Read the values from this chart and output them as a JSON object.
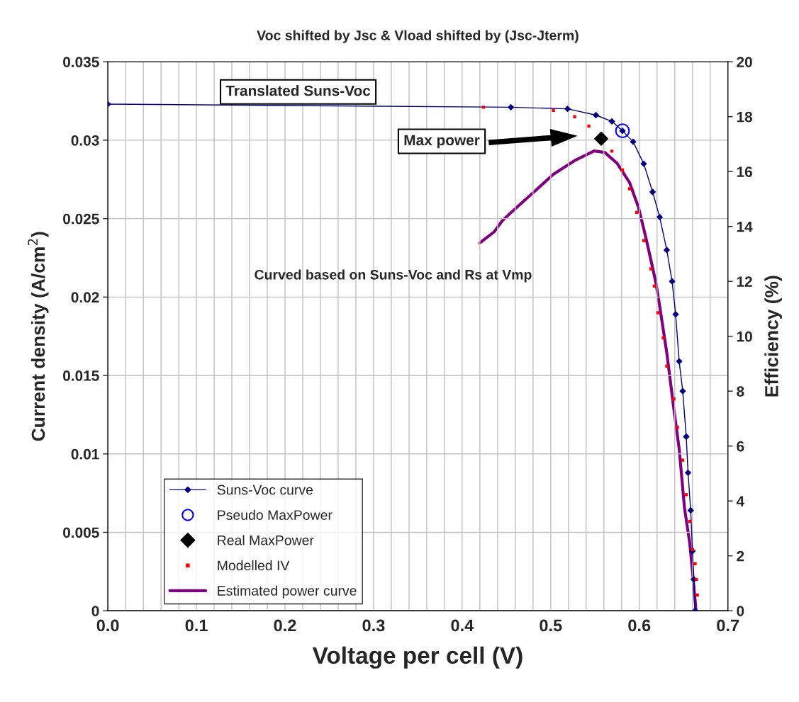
{
  "chart_data": {
    "type": "line",
    "title": "Voc shifted by Jsc & Vload shifted by (Jsc-Jterm)",
    "xlabel": "Voltage per cell (V)",
    "ylabel": "Current density (A/cm$^{2}$)",
    "y2label": "Efficiency (%)",
    "xlim": [
      0,
      0.7
    ],
    "xticks": [
      {
        "value": 0,
        "label": "0.0"
      },
      {
        "value": 0.02,
        "label": null
      },
      {
        "value": 0.04,
        "label": null
      },
      {
        "value": 0.06,
        "label": null
      },
      {
        "value": 0.08,
        "label": null
      },
      0.1,
      {
        "value": 0.12,
        "label": null
      },
      {
        "value": 0.14,
        "label": null
      },
      {
        "value": 0.16,
        "label": null
      },
      {
        "value": 0.18,
        "label": null
      },
      0.2,
      {
        "value": 0.22,
        "label": null
      },
      {
        "value": 0.24,
        "label": null
      },
      {
        "value": 0.26,
        "label": null
      },
      {
        "value": 0.28,
        "label": null
      },
      0.3,
      {
        "value": 0.32,
        "label": null
      },
      {
        "value": 0.34,
        "label": null
      },
      {
        "value": 0.36,
        "label": null
      },
      {
        "value": 0.38,
        "label": null
      },
      0.4,
      {
        "value": 0.42,
        "label": null
      },
      {
        "value": 0.44,
        "label": null
      },
      {
        "value": 0.46,
        "label": null
      },
      {
        "value": 0.48,
        "label": null
      },
      0.5,
      {
        "value": 0.52,
        "label": null
      },
      {
        "value": 0.54,
        "label": null
      },
      {
        "value": 0.56,
        "label": null
      },
      {
        "value": 0.58,
        "label": null
      },
      0.6,
      {
        "value": 0.62,
        "label": null
      },
      {
        "value": 0.64,
        "label": null
      },
      {
        "value": 0.66,
        "label": null
      },
      {
        "value": 0.68,
        "label": null
      },
      0.7
    ],
    "ylim": [
      0,
      0.035
    ],
    "yticks": [
      0,
      0.005,
      0.01,
      0.015,
      0.02,
      0.025,
      0.03,
      0.035
    ],
    "y2lim": [
      0,
      20
    ],
    "y2ticks": [
      0,
      2,
      4,
      6,
      8,
      10,
      12,
      14,
      16,
      18,
      20
    ],
    "grid": true,
    "legend": "bottom left",
    "series": [
      {
        "name": "Suns-Voc curve",
        "marker": "diamond",
        "color": "#000080",
        "x": [
          0,
          0.455,
          0.519,
          0.551,
          0.569,
          0.581,
          0.593,
          0.605,
          0.615,
          0.623,
          0.631,
          0.637,
          0.641,
          0.645,
          0.649,
          0.653,
          0.655,
          0.658,
          0.66,
          0.6615,
          0.663
        ],
        "values": [
          0.0323,
          0.0321,
          0.032,
          0.0316,
          0.0312,
          0.0306,
          0.0299,
          0.0285,
          0.0267,
          0.0251,
          0.023,
          0.021,
          0.0189,
          0.0159,
          0.014,
          0.0111,
          0.0088,
          0.0064,
          0.0038,
          0.002,
          0
        ]
      },
      {
        "name": "Pseudo MaxPower",
        "type": "scatter",
        "marker": "circle",
        "color": "#0000ff",
        "x": [
          0.581
        ],
        "values": [
          0.0306
        ]
      },
      {
        "name": "Real MaxPower",
        "type": "scatter",
        "marker": "diamond",
        "color": "#000000",
        "x": [
          0.557
        ],
        "values": [
          0.0301
        ]
      },
      {
        "name": "Modelled IV",
        "type": "scatter",
        "marker": "square",
        "color": "#ff0000",
        "x": [
          0.424,
          0.455,
          0.503,
          0.527,
          0.543,
          0.559,
          0.569,
          0.581,
          0.589,
          0.597,
          0.605,
          0.613,
          0.617,
          0.621,
          0.627,
          0.631,
          0.639,
          0.643,
          0.649,
          0.653,
          0.657,
          0.66,
          0.663,
          0.6645,
          0.6655
        ],
        "values": [
          0.0321,
          null,
          0.0319,
          0.0315,
          0.0309,
          null,
          0.0293,
          0.0281,
          0.0269,
          0.0254,
          0.0236,
          0.0218,
          0.0207,
          0.019,
          0.0174,
          0.0156,
          0.0135,
          0.0117,
          0.0096,
          0.0074,
          0.0057,
          0.0039,
          0.003,
          0.002,
          0.001
        ]
      },
      {
        "name": "Estimated power curve",
        "type": "line",
        "marker": "none",
        "axis": "y2",
        "color": "#800080",
        "x": [
          0.42,
          0.436,
          0.445,
          0.455,
          0.479,
          0.503,
          0.527,
          0.549,
          0.561,
          0.575,
          0.589,
          0.599,
          0.607,
          0.615,
          0.619,
          0.623,
          0.631,
          0.639,
          0.645,
          0.651,
          0.657,
          0.661,
          0.664
        ],
        "values": [
          13.4,
          13.8,
          14.2,
          14.5,
          15.2,
          15.9,
          16.4,
          16.75,
          16.7,
          16.3,
          15.6,
          14.7,
          13.65,
          12.5,
          11.9,
          11.1,
          9.4,
          7.35,
          5.9,
          3.75,
          2.45,
          1.1,
          0
        ]
      }
    ],
    "annotations": [
      "Translated Suns-Voc",
      "Max power",
      "Curved based on Suns-Voc and Rs at Vmp"
    ]
  }
}
